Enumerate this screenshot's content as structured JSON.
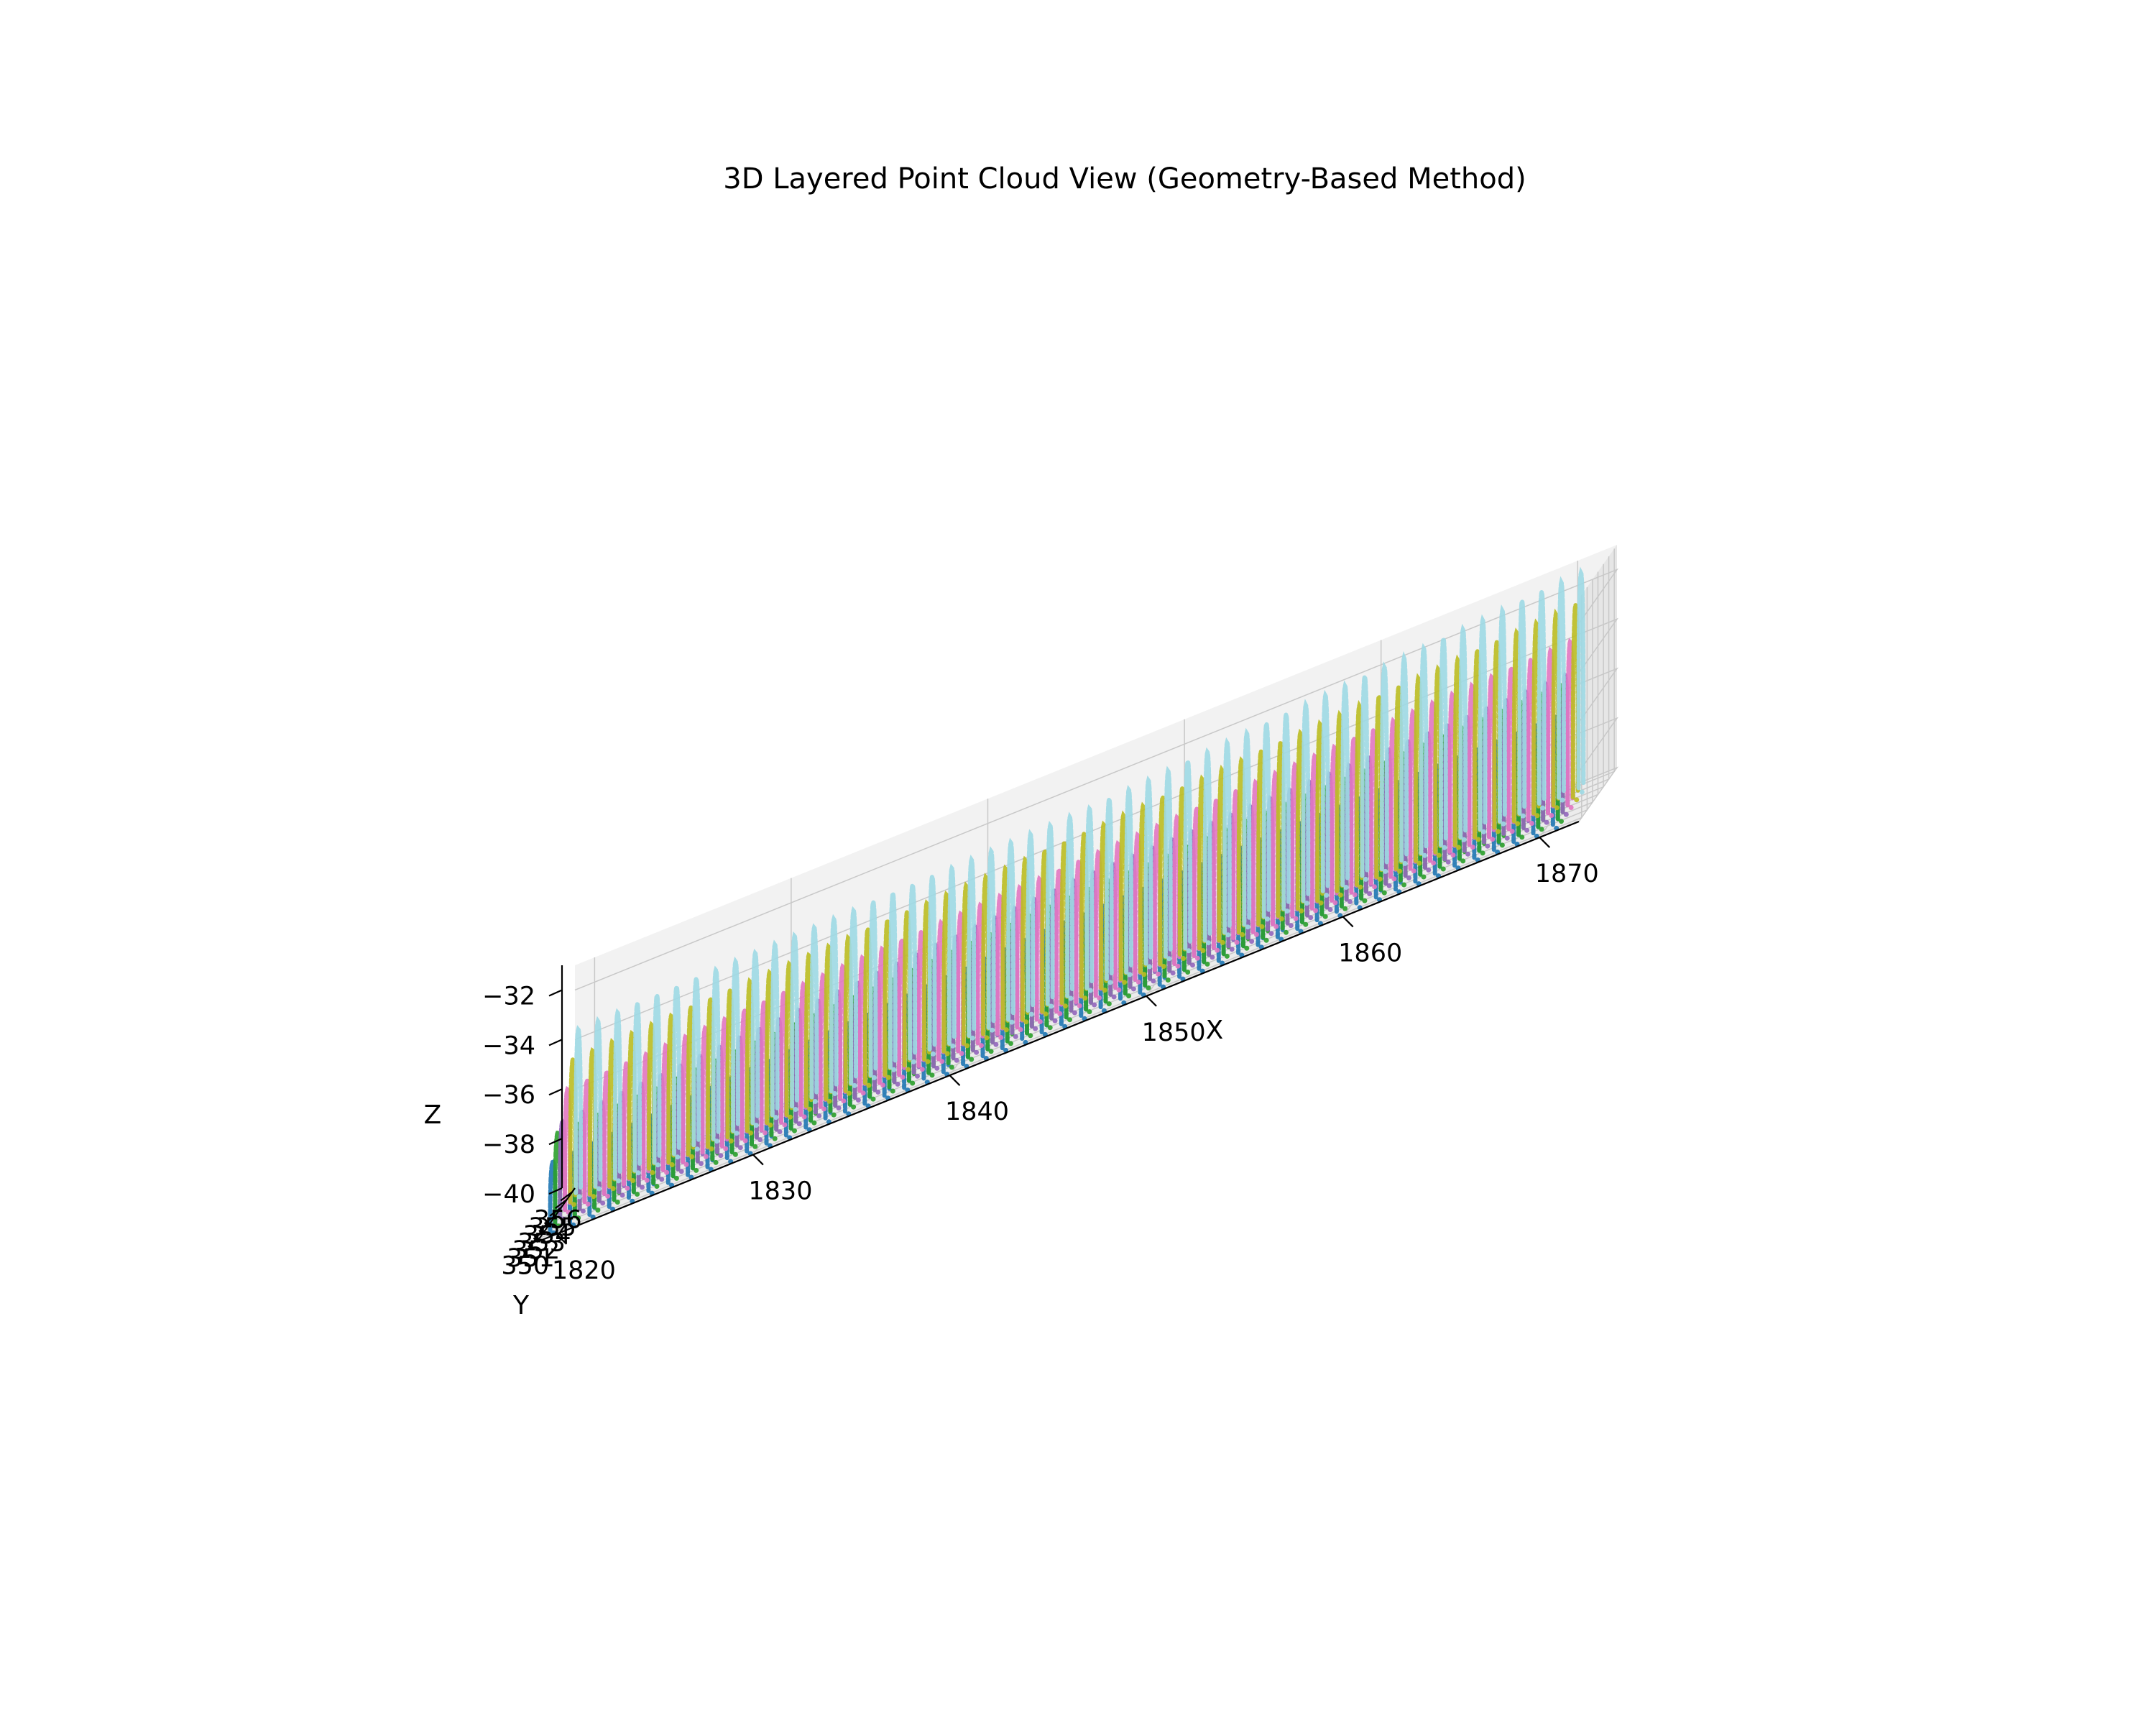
{
  "chart_data": {
    "type": "scatter",
    "projection": "3d",
    "title": "3D Layered Point Cloud View (Geometry-Based Method)",
    "xlabel": "X",
    "ylabel": "Y",
    "zlabel": "Z",
    "xlim": [
      1819,
      1872
    ],
    "ylim": [
      349.5,
      356.5
    ],
    "zlim": [
      -40,
      -31
    ],
    "xticks": [
      "1820",
      "1830",
      "1840",
      "1850",
      "1860",
      "1870"
    ],
    "yticks": [
      "350",
      "351",
      "352",
      "353",
      "354",
      "355",
      "356"
    ],
    "zticks": [
      "−40",
      "−38",
      "−36",
      "−34",
      "−32"
    ],
    "grid": true,
    "legend": "none",
    "arch_x_spacing": 1.0,
    "series": [
      {
        "color": "#1f77b4",
        "y_center": 350.6,
        "crown_z": [
          -37.3,
          -35.9,
          -35.6
        ]
      },
      {
        "color": "#2ca02c",
        "y_center": 351.5,
        "crown_z": [
          -36.4,
          -35.2,
          -34.6
        ]
      },
      {
        "color": "#9467bd",
        "y_center": 352.4,
        "crown_z": [
          -36.2,
          -34.8,
          -34.5
        ]
      },
      {
        "color": "#e377c2",
        "y_center": 353.3,
        "crown_z": [
          -35.2,
          -34.3,
          -33.4
        ]
      },
      {
        "color": "#bcbd22",
        "y_center": 354.3,
        "crown_z": [
          -34.3,
          -33.5,
          -32.2
        ]
      },
      {
        "color": "#9edae5",
        "y_center": 355.3,
        "crown_z": [
          -33.4,
          -32.8,
          -31.2
        ]
      }
    ]
  }
}
